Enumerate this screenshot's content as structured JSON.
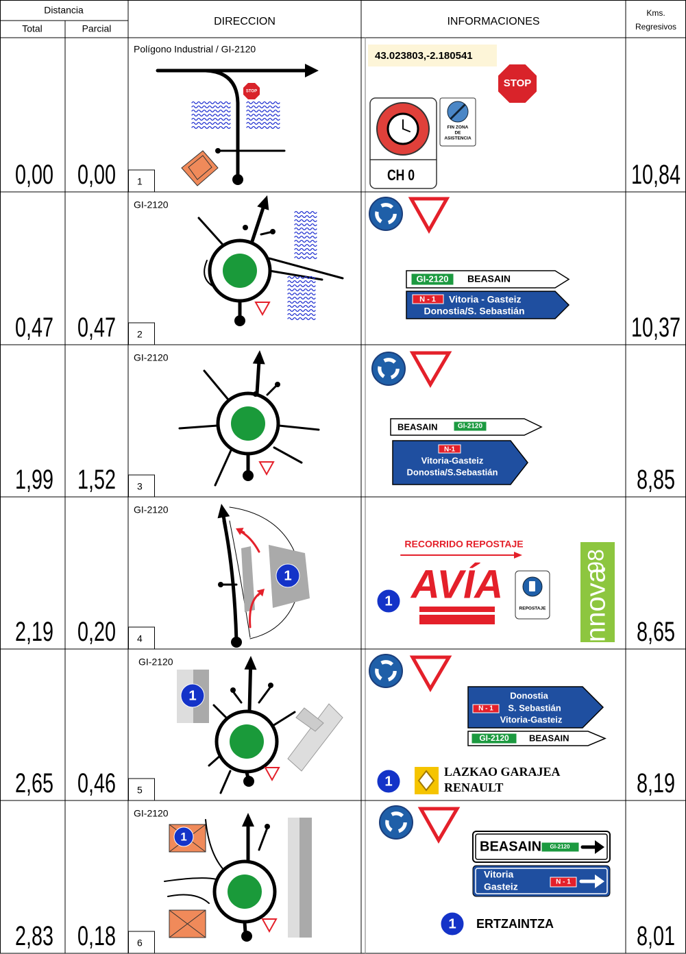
{
  "header": {
    "distance": "Distancia",
    "total": "Total",
    "partial": "Parcial",
    "direction": "DIRECCION",
    "information": "INFORMACIONES",
    "kms": [
      "Kms.",
      "Regresivos"
    ]
  },
  "rows": [
    {
      "total": "0,00",
      "partial": "0,00",
      "number": "1",
      "road": "Polígono Industrial / GI-2120",
      "kms": "10,84",
      "diagram_stop": "STOP",
      "coordinates": "43.023803,-2.180541",
      "stop_sign": "STOP",
      "control": "CH 0",
      "assistance": [
        "FIN ZONA",
        "DE",
        "ASISTENCIA"
      ]
    },
    {
      "total": "0,47",
      "partial": "0,47",
      "number": "2",
      "road": "GI-2120",
      "kms": "10,37",
      "sign_1": {
        "road": "GI-2120",
        "destination": "BEASAIN"
      },
      "sign_2": {
        "road": "N - 1",
        "destinations": [
          "Vitoria - Gasteiz",
          "Donostia/S. Sebastián"
        ]
      }
    },
    {
      "total": "1,99",
      "partial": "1,52",
      "number": "3",
      "road": "GI-2120",
      "kms": "8,85",
      "sign_1": {
        "destination": "BEASAIN",
        "road": "GI-2120"
      },
      "sign_2": {
        "road": "N-1",
        "destinations": [
          "Vitoria-Gasteiz",
          "Donostia/S.Sebastián"
        ]
      }
    },
    {
      "total": "2,19",
      "partial": "0,20",
      "number": "4",
      "road": "GI-2120",
      "kms": "8,65",
      "diagram_marker": "1",
      "route": "RECORRIDO REPOSTAJE",
      "brand": "AVÍA",
      "info_marker": "1",
      "fuel_sign": "REPOSTAJE",
      "fuel_brand": {
        "octane": "98",
        "name": "innova"
      }
    },
    {
      "total": "2,65",
      "partial": "0,46",
      "number": "5",
      "road": "GI-2120",
      "kms": "8,19",
      "diagram_marker": "1",
      "sign_1": {
        "destinations": [
          "Donostia",
          "S. Sebastián",
          "Vitoria-Gasteiz"
        ],
        "road": "N - 1"
      },
      "sign_2": {
        "road": "GI-2120",
        "destination": "BEASAIN"
      },
      "info_marker": "1",
      "business": [
        "LAZKAO GARAJEA",
        "RENAULT"
      ]
    },
    {
      "total": "2,83",
      "partial": "0,18",
      "number": "6",
      "road": "GI-2120",
      "kms": "8,01",
      "diagram_marker": "1",
      "sign_1": {
        "destination": "BEASAIN",
        "road": "GI-2120"
      },
      "sign_2": {
        "destinations": [
          "Vitoria",
          "Gasteiz"
        ],
        "road": "N - 1"
      },
      "info_marker": "1",
      "place": "ERTZAINTZA"
    }
  ]
}
